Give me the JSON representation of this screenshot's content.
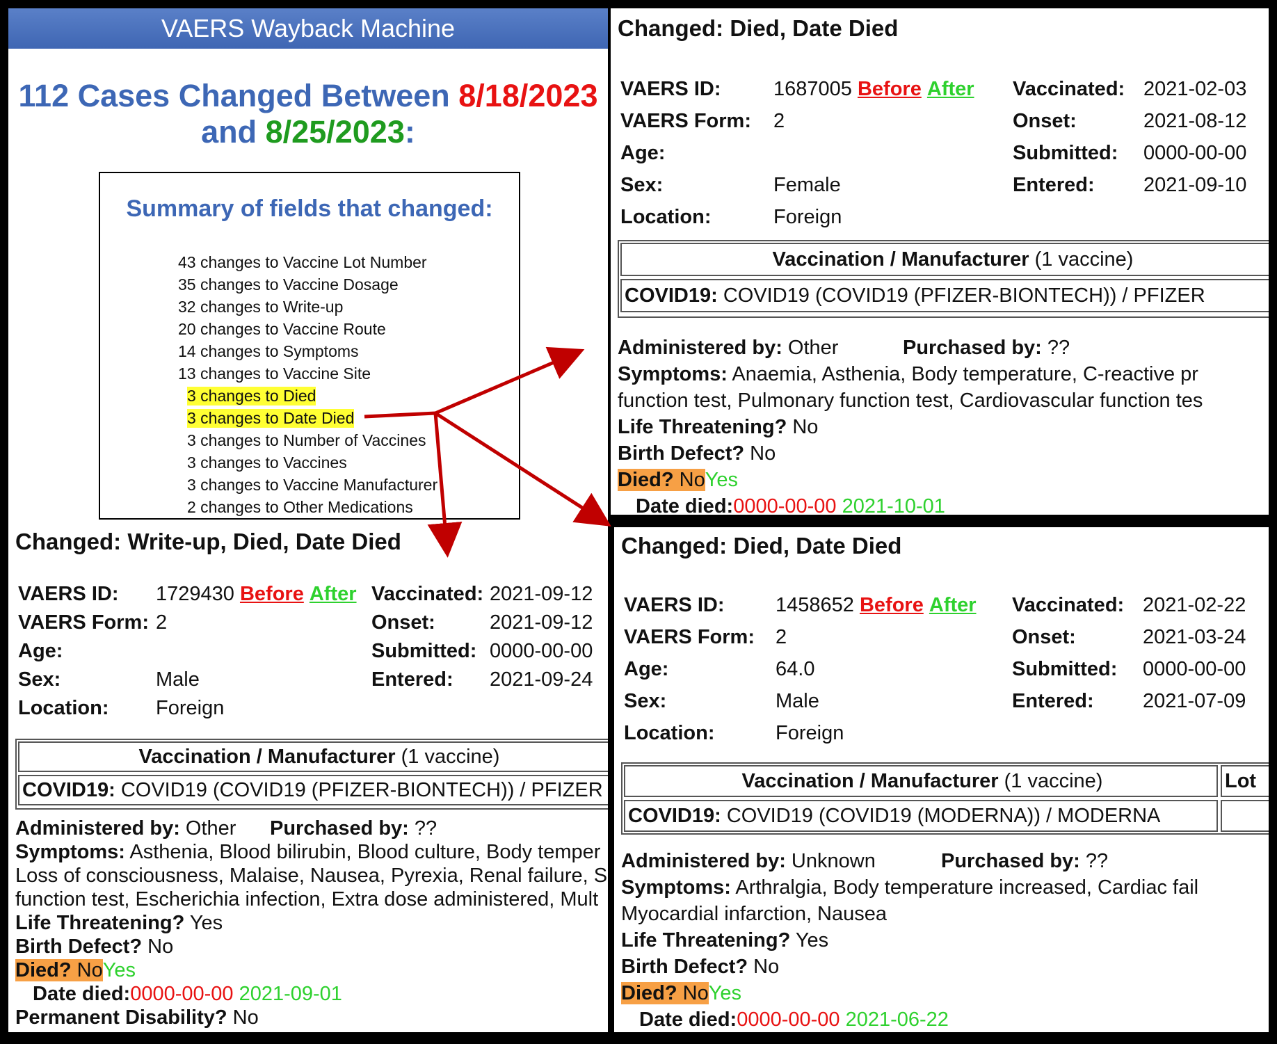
{
  "left": {
    "banner": "VAERS Wayback Machine",
    "headline": {
      "part1": "112 Cases Changed Between ",
      "date_before": "8/18/2023",
      "part2": "and ",
      "date_after": "8/25/2023",
      "suffix": ":"
    },
    "summary": {
      "title": "Summary of fields that changed:",
      "items": [
        "43 changes to Vaccine Lot Number",
        "35 changes to Vaccine Dosage",
        "32 changes to Write-up",
        "20 changes to Vaccine Route",
        "14 changes to Symptoms",
        "13 changes to Vaccine Site",
        "3 changes to Died",
        "3 changes to Date Died",
        "3 changes to Number of Vaccines",
        "3 changes to Vaccines",
        "3 changes to Vaccine Manufacturer",
        "2 changes to Other Medications"
      ]
    },
    "record": {
      "changed": "Changed: Write-up, Died, Date Died",
      "vaers_id_label": "VAERS ID:",
      "vaers_id": "1729430",
      "before": "Before",
      "after": "After",
      "form_label": "VAERS Form:",
      "form": "2",
      "age_label": "Age:",
      "age": "",
      "sex_label": "Sex:",
      "sex": "Male",
      "location_label": "Location:",
      "location": "Foreign",
      "vaccinated_label": "Vaccinated:",
      "vaccinated": "2021-09-12",
      "onset_label": "Onset:",
      "onset": "2021-09-12",
      "submitted_label": "Submitted:",
      "submitted": "0000-00-00",
      "entered_label": "Entered:",
      "entered": "2021-09-24",
      "table_header_bold": "Vaccination / Manufacturer",
      "table_header_rest": " (1 vaccine)",
      "vaccine_bold": "COVID19:",
      "vaccine_rest": " COVID19 (COVID19 (PFIZER-BIONTECH)) / PFIZER",
      "admin_label": "Administered by:",
      "admin": " Other",
      "purchased_label": "Purchased by:",
      "purchased": " ??",
      "symptoms_label": "Symptoms:",
      "symptoms_line1": " Asthenia, Blood bilirubin, Blood culture, Body temper",
      "symptoms_line2": "Loss of consciousness, Malaise, Nausea, Pyrexia, Renal failure, S",
      "symptoms_line3": "function test, Escherichia infection, Extra dose administered, Mult",
      "life_label": "Life Threatening?",
      "life": " Yes",
      "birth_label": "Birth Defect?",
      "birth": " No",
      "died_label": "Died?",
      "died_before": " No",
      "died_after": "Yes",
      "date_died_label": "Date died:",
      "date_died_before": "0000-00-00",
      "date_died_after": " 2021-09-01",
      "disability_label": "Permanent Disability?",
      "disability": " No"
    }
  },
  "top_right": {
    "changed": "Changed: Died, Date Died",
    "vaers_id_label": "VAERS ID:",
    "vaers_id": "1687005",
    "before": "Before",
    "after": "After",
    "form_label": "VAERS Form:",
    "form": "2",
    "age_label": "Age:",
    "age": "",
    "sex_label": "Sex:",
    "sex": "Female",
    "location_label": "Location:",
    "location": "Foreign",
    "vaccinated_label": "Vaccinated:",
    "vaccinated": "2021-02-03",
    "onset_label": "Onset:",
    "onset": "2021-08-12",
    "submitted_label": "Submitted:",
    "submitted": "0000-00-00",
    "entered_label": "Entered:",
    "entered": "2021-09-10",
    "table_header_bold": "Vaccination / Manufacturer",
    "table_header_rest": " (1 vaccine)",
    "vaccine_bold": "COVID19:",
    "vaccine_rest": " COVID19 (COVID19 (PFIZER-BIONTECH)) / PFIZER",
    "admin_label": "Administered by:",
    "admin": " Other",
    "purchased_label": "Purchased by:",
    "purchased": " ??",
    "symptoms_label": "Symptoms:",
    "symptoms_line1": " Anaemia, Asthenia, Body temperature, C-reactive pr",
    "symptoms_line2": "function test, Pulmonary function test, Cardiovascular function tes",
    "life_label": "Life Threatening?",
    "life": " No",
    "birth_label": "Birth Defect?",
    "birth": " No",
    "died_label": "Died?",
    "died_before": " No",
    "died_after": "Yes",
    "date_died_label": "Date died:",
    "date_died_before": "0000-00-00",
    "date_died_after": " 2021-10-01"
  },
  "bottom_right": {
    "changed": "Changed: Died, Date Died",
    "vaers_id_label": "VAERS ID:",
    "vaers_id": "1458652",
    "before": "Before",
    "after": "After",
    "form_label": "VAERS Form:",
    "form": "2",
    "age_label": "Age:",
    "age": "64.0",
    "sex_label": "Sex:",
    "sex": "Male",
    "location_label": "Location:",
    "location": "Foreign",
    "vaccinated_label": "Vaccinated:",
    "vaccinated": "2021-02-22",
    "onset_label": "Onset:",
    "onset": "2021-03-24",
    "submitted_label": "Submitted:",
    "submitted": "0000-00-00",
    "entered_label": "Entered:",
    "entered": "2021-07-09",
    "table_header_bold": "Vaccination / Manufacturer",
    "table_header_rest": " (1 vaccine)",
    "lot_header": "Lot",
    "vaccine_bold": "COVID19:",
    "vaccine_rest": " COVID19 (COVID19 (MODERNA)) / MODERNA",
    "admin_label": "Administered by:",
    "admin": " Unknown",
    "purchased_label": "Purchased by:",
    "purchased": " ??",
    "symptoms_label": "Symptoms:",
    "symptoms_line1": " Arthralgia, Body temperature increased, Cardiac fail",
    "symptoms_line2": "Myocardial infarction, Nausea",
    "life_label": "Life Threatening?",
    "life": " Yes",
    "birth_label": "Birth Defect?",
    "birth": " No",
    "died_label": "Died?",
    "died_before": " No",
    "died_after": "Yes",
    "date_died_label": "Date died:",
    "date_died_before": "0000-00-00",
    "date_died_after": " 2021-06-22"
  },
  "colors": {
    "arrow": "#c00000",
    "highlight": "#ffff33",
    "died_badge": "#f7a045",
    "before": "#e81212",
    "after": "#2ed12e"
  }
}
